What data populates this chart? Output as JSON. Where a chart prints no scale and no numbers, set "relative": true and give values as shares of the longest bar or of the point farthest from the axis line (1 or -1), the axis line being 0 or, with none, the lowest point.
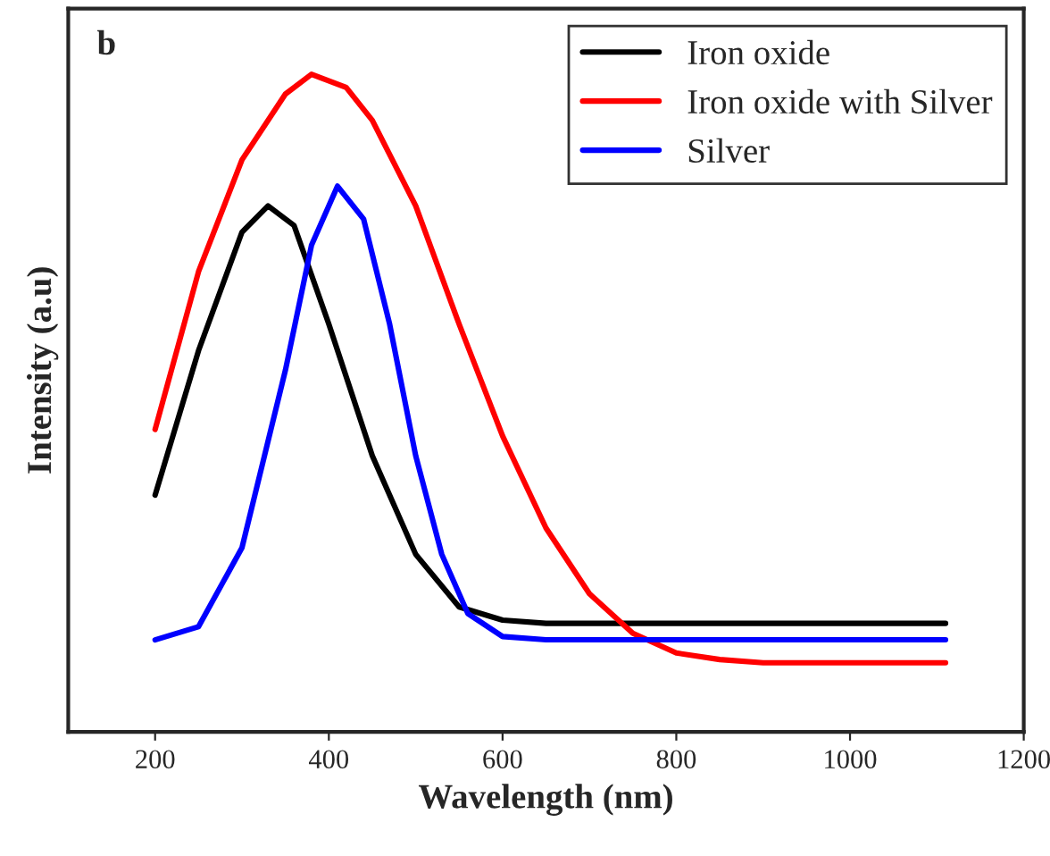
{
  "chart_data": {
    "type": "line",
    "relative": true,
    "xlabel": "Wavelength (nm)",
    "ylabel": "Intensity (a.u)",
    "annotations": [
      "b"
    ],
    "xlim": [
      100,
      1200
    ],
    "xticks": [
      200,
      400,
      600,
      800,
      1000,
      1200
    ],
    "grid": false,
    "legend": "top right",
    "tick_labels": "x",
    "series": [
      {
        "name": "Iron oxide",
        "color": "#000000",
        "x": [
          200,
          250,
          300,
          330,
          360,
          400,
          450,
          500,
          550,
          600,
          650,
          700,
          1110
        ],
        "values": [
          0.36,
          0.58,
          0.76,
          0.8,
          0.77,
          0.62,
          0.42,
          0.27,
          0.19,
          0.17,
          0.165,
          0.165,
          0.165
        ]
      },
      {
        "name": "Iron oxide with Silver",
        "color": "#ff0000",
        "x": [
          200,
          250,
          300,
          350,
          380,
          420,
          450,
          500,
          550,
          600,
          650,
          700,
          750,
          800,
          850,
          900,
          1110
        ],
        "values": [
          0.46,
          0.7,
          0.87,
          0.97,
          1.0,
          0.98,
          0.93,
          0.8,
          0.62,
          0.45,
          0.31,
          0.21,
          0.15,
          0.12,
          0.11,
          0.105,
          0.105
        ]
      },
      {
        "name": "Silver",
        "color": "#0000ff",
        "x": [
          200,
          250,
          300,
          350,
          380,
          410,
          440,
          470,
          500,
          530,
          560,
          600,
          650,
          1110
        ],
        "values": [
          0.14,
          0.16,
          0.28,
          0.55,
          0.74,
          0.83,
          0.78,
          0.62,
          0.42,
          0.27,
          0.18,
          0.145,
          0.14,
          0.14
        ]
      }
    ]
  }
}
